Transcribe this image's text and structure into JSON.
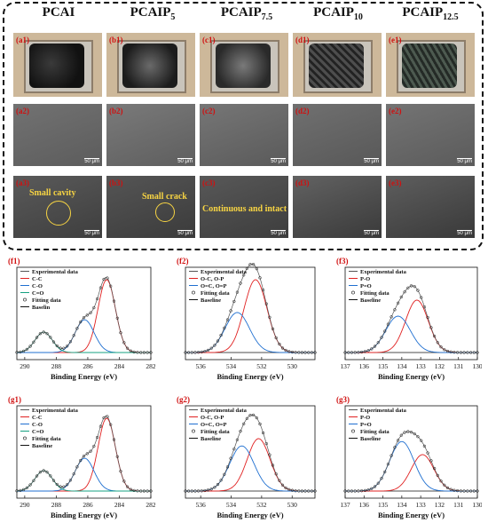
{
  "columns": [
    {
      "title": "PCAI",
      "sub": ""
    },
    {
      "title": "PCAIP",
      "sub": "5"
    },
    {
      "title": "PCAIP",
      "sub": "7.5"
    },
    {
      "title": "PCAIP",
      "sub": "10"
    },
    {
      "title": "PCAIP",
      "sub": "12.5"
    }
  ],
  "rows": [
    [
      "(a1)",
      "(b1)",
      "(c1)",
      "(d1)",
      "(e1)"
    ],
    [
      "(a2)",
      "(b2)",
      "(c2)",
      "(d2)",
      "(e2)"
    ],
    [
      "(a3)",
      "(b3)",
      "(c3)",
      "(d3)",
      "(e3)"
    ]
  ],
  "scale_bar": "50 μm",
  "annotations": {
    "a3": "Small cavity",
    "b3": "Small crack",
    "c3": "Continuous and intact"
  },
  "colors": {
    "label": "#d01010",
    "annotation": "#f7d443",
    "exp": "#555555",
    "red": "#e02020",
    "blue": "#1f6fd0",
    "green": "#14a080",
    "fit": "#111111"
  },
  "plots": [
    {
      "label": "(f1)",
      "legend": [
        "Experimental data",
        "C-C",
        "C-O",
        "C=O",
        "Fitting data",
        "Baselin"
      ],
      "kind": "C"
    },
    {
      "label": "(f2)",
      "legend": [
        "Experimental data",
        "O-C, O-P",
        "O=C, O=P",
        "Fitting data",
        "Baseline"
      ],
      "kind": "O"
    },
    {
      "label": "(f3)",
      "legend": [
        "Experimental data",
        "P-O",
        "P=O",
        "Fitting data",
        "Baseline"
      ],
      "kind": "P"
    },
    {
      "label": "(g1)",
      "legend": [
        "Experimental data",
        "C-C",
        "C-O",
        "C=O",
        "Fitting data",
        "Baseline"
      ],
      "kind": "C"
    },
    {
      "label": "(g2)",
      "legend": [
        "Experimental data",
        "O-C, O-P",
        "O=C, O=P",
        "Fitting data",
        "Baseline"
      ],
      "kind": "O"
    },
    {
      "label": "(g3)",
      "legend": [
        "Experimental data",
        "P-O",
        "P=O",
        "Fitting data",
        "Baseline"
      ],
      "kind": "P"
    }
  ],
  "xlabel": "Binding Energy (eV)",
  "ticks": {
    "C": [
      "290",
      "288",
      "286",
      "284",
      "282"
    ],
    "O": [
      "536",
      "534",
      "532",
      "530"
    ],
    "P": [
      "137",
      "136",
      "135",
      "134",
      "133",
      "132",
      "131",
      "130"
    ]
  },
  "chart_data": [
    {
      "type": "line",
      "title": "(f1)",
      "xlabel": "Binding Energy (eV)",
      "xlim": [
        290.5,
        282
      ],
      "series": [
        {
          "name": "C-C",
          "center": 284.8
        },
        {
          "name": "C-O",
          "center": 286.2
        },
        {
          "name": "C=O",
          "center": 288.8
        }
      ]
    },
    {
      "type": "line",
      "title": "(f2)",
      "xlabel": "Binding Energy (eV)",
      "xlim": [
        537,
        528.5
      ],
      "series": [
        {
          "name": "O-C, O-P",
          "center": 532.4
        },
        {
          "name": "O=C, O=P",
          "center": 533.6
        }
      ]
    },
    {
      "type": "line",
      "title": "(f3)",
      "xlabel": "Binding Energy (eV)",
      "xlim": [
        137,
        130
      ],
      "series": [
        {
          "name": "P-O",
          "center": 133.2
        },
        {
          "name": "P=O",
          "center": 134.2
        }
      ]
    },
    {
      "type": "line",
      "title": "(g1)",
      "xlabel": "Binding Energy (eV)",
      "xlim": [
        290.5,
        282
      ],
      "series": [
        {
          "name": "C-C",
          "center": 284.8
        },
        {
          "name": "C-O",
          "center": 286.2
        },
        {
          "name": "C=O",
          "center": 288.8
        }
      ]
    },
    {
      "type": "line",
      "title": "(g2)",
      "xlabel": "Binding Energy (eV)",
      "xlim": [
        537,
        528.5
      ],
      "series": [
        {
          "name": "O-C, O-P",
          "center": 532.2
        },
        {
          "name": "O=C, O=P",
          "center": 533.3
        }
      ]
    },
    {
      "type": "line",
      "title": "(g3)",
      "xlabel": "Binding Energy (eV)",
      "xlim": [
        137,
        130
      ],
      "series": [
        {
          "name": "P-O",
          "center": 132.9
        },
        {
          "name": "P=O",
          "center": 134.0
        }
      ]
    }
  ]
}
